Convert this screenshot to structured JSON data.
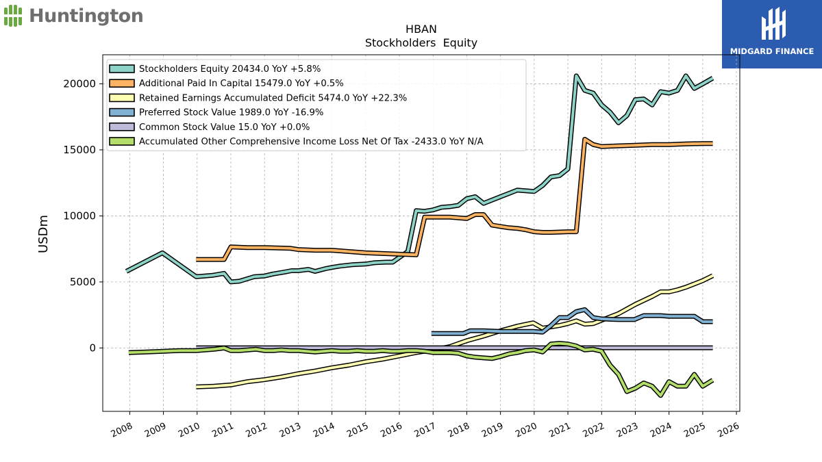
{
  "brand": {
    "name": "Huntington",
    "color": "#6aa842"
  },
  "watermark": {
    "name": "MIDGARD FINANCE",
    "bg": "#2b5cb0"
  },
  "chart_data": {
    "type": "line",
    "title": "HBAN",
    "subtitle": "Stockholders  Equity",
    "ylabel": "USDm",
    "xlabel": "",
    "ylim": [
      -4800,
      22200
    ],
    "xlim": [
      2007.2,
      2026.1
    ],
    "yticks": [
      0,
      5000,
      10000,
      15000,
      20000
    ],
    "xticks": [
      2008,
      2009,
      2010,
      2011,
      2012,
      2013,
      2014,
      2015,
      2016,
      2017,
      2018,
      2019,
      2020,
      2021,
      2022,
      2023,
      2024,
      2025,
      2026
    ],
    "grid": true,
    "legend_position": "top-left",
    "series": [
      {
        "name": "Stockholders Equity  20434.0 YoY +5.8%",
        "color": "#8dd3c7",
        "x": [
          2007.9,
          2008.97,
          2009.97,
          2010.47,
          2010.8,
          2011.0,
          2011.25,
          2011.7,
          2012.0,
          2012.25,
          2012.6,
          2012.8,
          2013.0,
          2013.3,
          2013.5,
          2013.8,
          2014.0,
          2014.25,
          2014.6,
          2015.0,
          2015.25,
          2015.6,
          2015.8,
          2016.25,
          2016.5,
          2016.75,
          2017.0,
          2017.25,
          2017.5,
          2017.75,
          2018.0,
          2018.25,
          2018.5,
          2018.75,
          2019.0,
          2019.25,
          2019.5,
          2019.75,
          2020.0,
          2020.25,
          2020.5,
          2020.75,
          2021.0,
          2021.25,
          2021.5,
          2021.75,
          2022.0,
          2022.25,
          2022.5,
          2022.75,
          2023.0,
          2023.25,
          2023.5,
          2023.75,
          2024.0,
          2024.25,
          2024.5,
          2024.75,
          2025.0,
          2025.3
        ],
        "y": [
          5800,
          7200,
          5400,
          5500,
          5650,
          5000,
          5050,
          5400,
          5450,
          5600,
          5750,
          5850,
          5850,
          5950,
          5800,
          6000,
          6100,
          6200,
          6300,
          6350,
          6450,
          6500,
          6500,
          7300,
          10400,
          10350,
          10450,
          10650,
          10700,
          10800,
          11300,
          11450,
          10950,
          11200,
          11450,
          11700,
          11950,
          11900,
          11850,
          12300,
          12950,
          13050,
          13550,
          20600,
          19500,
          19300,
          18400,
          17850,
          17050,
          17600,
          18800,
          18850,
          18400,
          19400,
          19300,
          19500,
          20600,
          19650,
          20000,
          20434
        ]
      },
      {
        "name": "Additional Paid In Capital  15479.0 YoY +0.5%",
        "color": "#fdb462",
        "x": [
          2009.97,
          2010.8,
          2011.0,
          2011.5,
          2012.0,
          2012.75,
          2013.0,
          2013.5,
          2014.0,
          2014.5,
          2015.0,
          2015.5,
          2016.0,
          2016.5,
          2016.75,
          2017.0,
          2017.5,
          2018.0,
          2018.25,
          2018.5,
          2018.75,
          2019.0,
          2019.25,
          2019.5,
          2019.75,
          2020.0,
          2020.25,
          2020.5,
          2021.0,
          2021.25,
          2021.5,
          2021.75,
          2022.0,
          2022.5,
          2023.0,
          2023.5,
          2024.0,
          2024.5,
          2025.0,
          2025.3
        ],
        "y": [
          6700,
          6700,
          7650,
          7600,
          7600,
          7550,
          7450,
          7400,
          7400,
          7300,
          7200,
          7150,
          7100,
          7050,
          9900,
          9900,
          9900,
          9800,
          10100,
          10100,
          9300,
          9200,
          9100,
          9050,
          8950,
          8800,
          8750,
          8750,
          8800,
          8800,
          15800,
          15400,
          15250,
          15300,
          15350,
          15400,
          15400,
          15450,
          15480,
          15479
        ]
      },
      {
        "name": "Retained Earnings Accumulated Deficit  5474.0 YoY +22.3%",
        "color": "#ffffb3",
        "x": [
          2009.97,
          2010.5,
          2011.0,
          2011.5,
          2012.0,
          2012.5,
          2013.0,
          2013.5,
          2014.0,
          2014.5,
          2015.0,
          2015.5,
          2016.0,
          2016.5,
          2017.0,
          2017.5,
          2018.0,
          2018.5,
          2019.0,
          2019.5,
          2019.97,
          2020.25,
          2020.5,
          2020.75,
          2021.0,
          2021.25,
          2021.5,
          2021.75,
          2022.0,
          2022.5,
          2023.0,
          2023.5,
          2023.75,
          2024.0,
          2024.25,
          2024.5,
          2025.0,
          2025.3
        ],
        "y": [
          -2950,
          -2900,
          -2800,
          -2550,
          -2400,
          -2200,
          -1950,
          -1750,
          -1500,
          -1300,
          -1050,
          -850,
          -600,
          -350,
          -150,
          100,
          550,
          900,
          1300,
          1650,
          1900,
          1500,
          1600,
          1700,
          1850,
          2050,
          1800,
          1850,
          2100,
          2600,
          3300,
          3900,
          4250,
          4250,
          4400,
          4600,
          5100,
          5474
        ]
      },
      {
        "name": "Preferred Stock Value  1989.0 YoY -16.9%",
        "color": "#80b1d3",
        "x": [
          2016.95,
          2017.5,
          2017.9,
          2018.1,
          2018.5,
          2019.0,
          2019.5,
          2019.97,
          2020.25,
          2020.5,
          2020.75,
          2021.0,
          2021.25,
          2021.5,
          2021.75,
          2022.0,
          2022.5,
          2022.97,
          2023.25,
          2023.5,
          2023.75,
          2024.0,
          2024.25,
          2024.5,
          2024.75,
          2025.0,
          2025.3
        ],
        "y": [
          1100,
          1100,
          1100,
          1300,
          1300,
          1250,
          1250,
          1250,
          1200,
          1700,
          2300,
          2300,
          2750,
          2900,
          2300,
          2200,
          2150,
          2150,
          2450,
          2450,
          2450,
          2400,
          2400,
          2400,
          2400,
          1989,
          1989
        ]
      },
      {
        "name": "Common Stock Value  15.0 YoY +0.0%",
        "color": "#bebada",
        "x": [
          2009.97,
          2025.3
        ],
        "y": [
          15,
          15
        ]
      },
      {
        "name": "Accumulated Other Comprehensive Income Loss Net Of Tax  -2433.0 YoY N/A",
        "color": "#b3de69",
        "x": [
          2007.97,
          2008.5,
          2009.0,
          2009.5,
          2009.97,
          2010.5,
          2010.8,
          2011.0,
          2011.25,
          2011.5,
          2011.75,
          2012.0,
          2012.25,
          2012.5,
          2012.75,
          2013.0,
          2013.25,
          2013.5,
          2013.75,
          2014.0,
          2014.25,
          2014.5,
          2014.75,
          2015.0,
          2015.25,
          2015.5,
          2015.75,
          2016.0,
          2016.25,
          2016.5,
          2016.75,
          2017.0,
          2017.25,
          2017.5,
          2017.75,
          2018.0,
          2018.25,
          2018.5,
          2018.75,
          2019.0,
          2019.25,
          2019.5,
          2019.75,
          2020.0,
          2020.25,
          2020.5,
          2020.75,
          2021.0,
          2021.25,
          2021.5,
          2021.75,
          2022.0,
          2022.25,
          2022.5,
          2022.75,
          2023.0,
          2023.25,
          2023.5,
          2023.75,
          2024.0,
          2024.25,
          2024.5,
          2024.75,
          2025.0,
          2025.3
        ],
        "y": [
          -350,
          -300,
          -250,
          -200,
          -200,
          -100,
          0,
          -200,
          -200,
          -150,
          -100,
          -200,
          -200,
          -150,
          -200,
          -200,
          -250,
          -300,
          -250,
          -200,
          -250,
          -250,
          -200,
          -250,
          -250,
          -200,
          -250,
          -250,
          -200,
          -200,
          -250,
          -350,
          -350,
          -350,
          -400,
          -600,
          -700,
          -750,
          -800,
          -650,
          -450,
          -350,
          -200,
          -150,
          -300,
          300,
          350,
          300,
          150,
          -150,
          -100,
          -250,
          -1300,
          -2000,
          -3300,
          -3050,
          -2650,
          -2900,
          -3600,
          -2550,
          -2900,
          -2900,
          -2000,
          -2900,
          -2433
        ]
      }
    ]
  }
}
